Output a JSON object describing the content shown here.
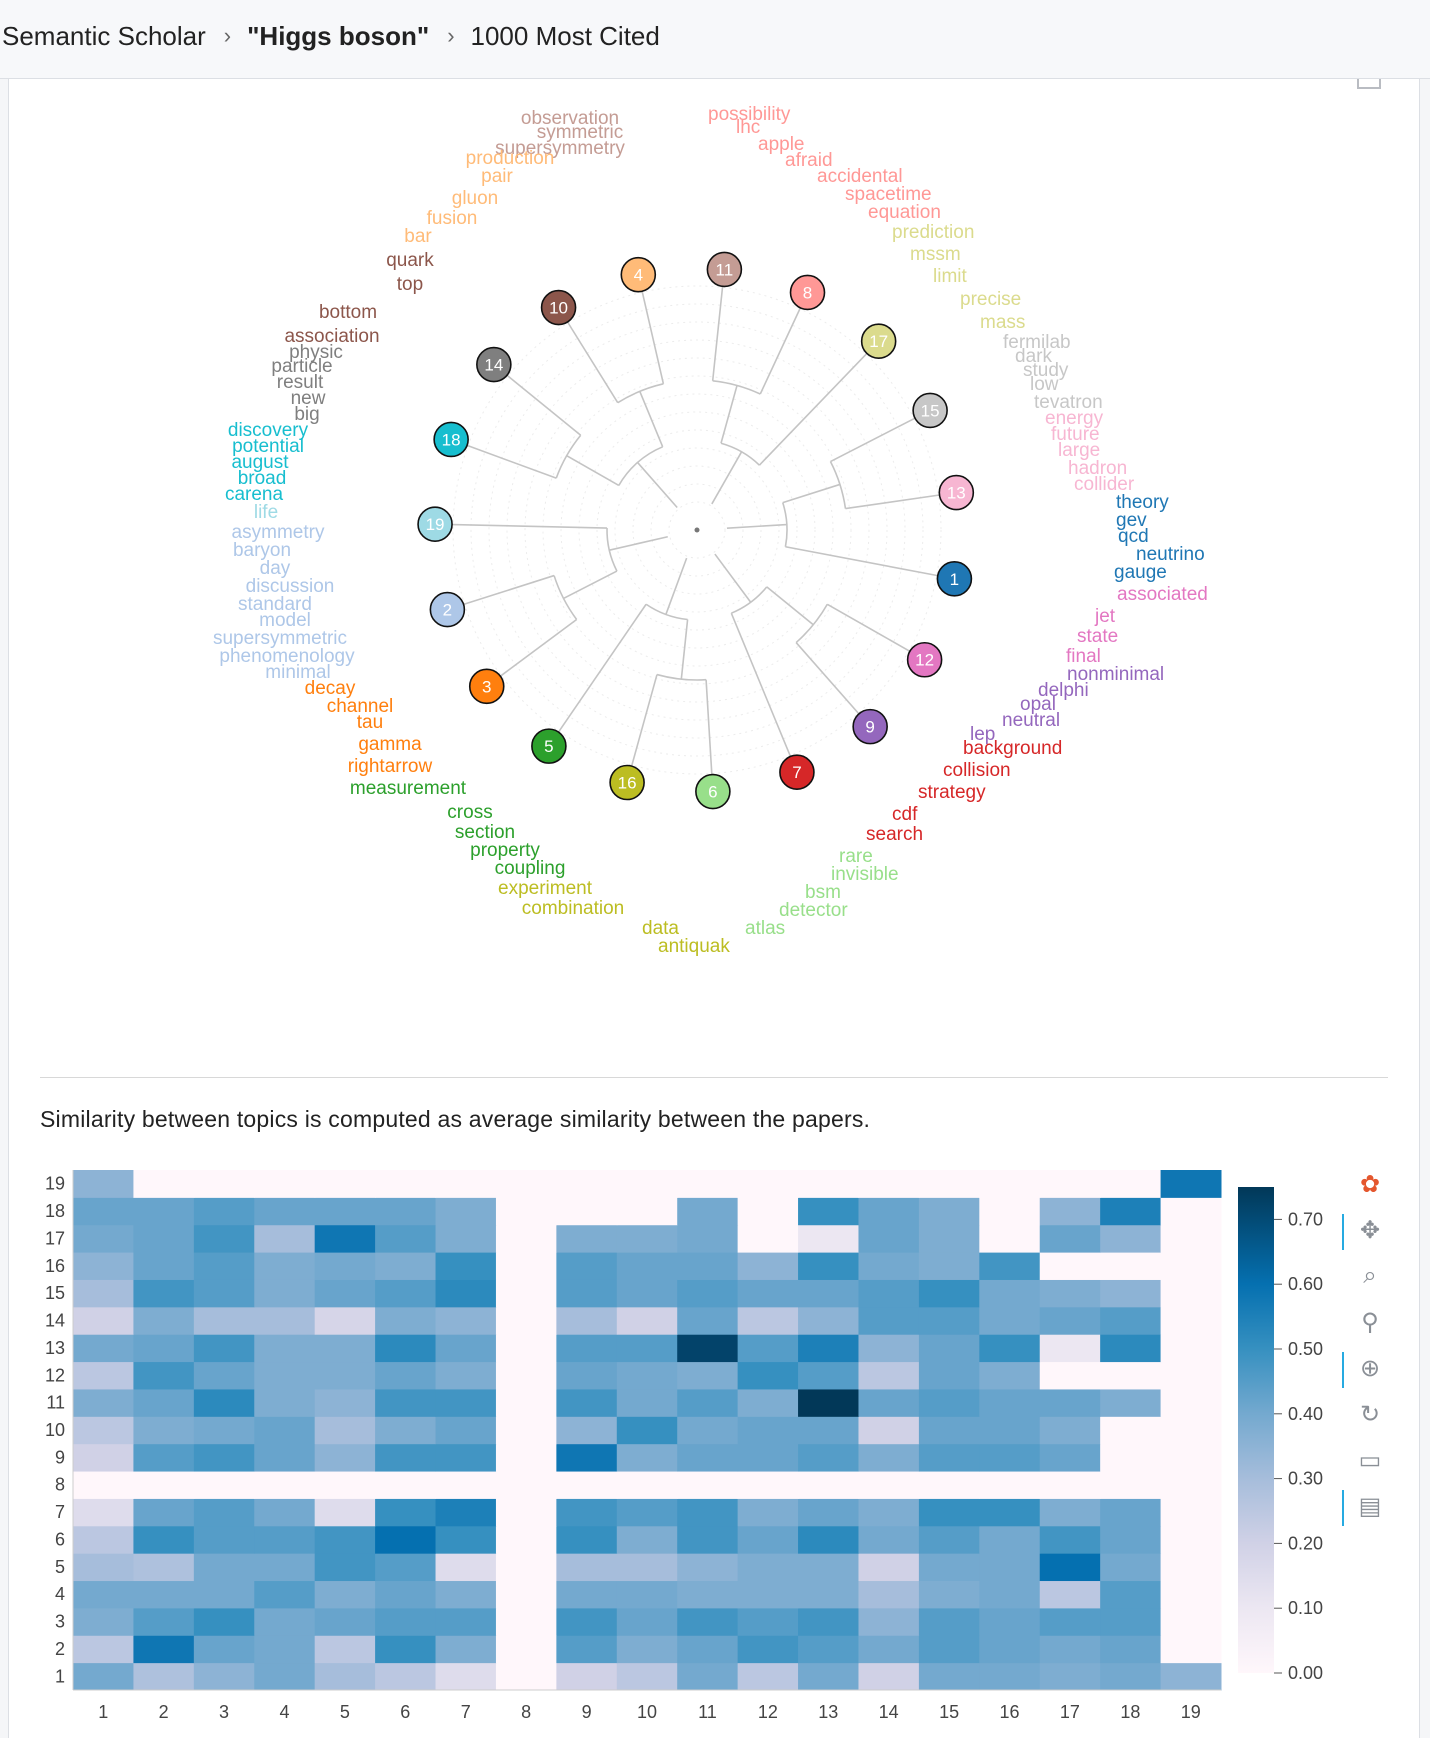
{
  "breadcrumb": {
    "items": [
      "Semantic Scholar",
      "\"Higgs boson\"",
      "1000 Most Cited"
    ],
    "separator": "›"
  },
  "note": "Similarity between topics is computed as average similarity between the papers.",
  "topic_colors": {
    "1": "#1f77b4",
    "2": "#aec7e8",
    "3": "#ff7f0e",
    "4": "#ffbb78",
    "5": "#2ca02c",
    "6": "#98df8a",
    "7": "#d62728",
    "8": "#ff9896",
    "9": "#9467bd",
    "10": "#8c564b",
    "11": "#c49c94",
    "12": "#e377c2",
    "13": "#f7b6d2",
    "14": "#7f7f7f",
    "15": "#c7c7c7",
    "16": "#bcbd22",
    "17": "#dbdb8d",
    "18": "#17becf",
    "19": "#9edae5"
  },
  "topic_nodes": [
    "11",
    "8",
    "17",
    "15",
    "13",
    "1",
    "12",
    "9",
    "7",
    "6",
    "16",
    "5",
    "3",
    "2",
    "19",
    "18",
    "14",
    "10",
    "4"
  ],
  "topic_words": [
    {
      "t": "11",
      "words": [
        "observation",
        "symmetric",
        "supersymmetry"
      ]
    },
    {
      "t": "8",
      "words": [
        "possibility",
        "lhc",
        "apple",
        "afraid",
        "accidental",
        "spacetime",
        "equation"
      ]
    },
    {
      "t": "17",
      "words": [
        "prediction",
        "mssm",
        "limit",
        "precise",
        "mass"
      ]
    },
    {
      "t": "15",
      "words": [
        "fermilab",
        "dark",
        "study",
        "low",
        "tevatron"
      ]
    },
    {
      "t": "13",
      "words": [
        "energy",
        "future",
        "large",
        "hadron",
        "collider"
      ]
    },
    {
      "t": "1",
      "words": [
        "theory",
        "gev",
        "qcd",
        "neutrino",
        "gauge"
      ]
    },
    {
      "t": "12",
      "words": [
        "associated",
        "jet",
        "state",
        "final"
      ]
    },
    {
      "t": "9",
      "words": [
        "nonminimal",
        "delphi",
        "opal",
        "neutral",
        "lep"
      ]
    },
    {
      "t": "7",
      "words": [
        "background",
        "collision",
        "strategy",
        "cdf",
        "search"
      ]
    },
    {
      "t": "6",
      "words": [
        "rare",
        "invisible",
        "bsm",
        "detector",
        "atlas"
      ]
    },
    {
      "t": "16",
      "words": [
        "data",
        "antiquak"
      ]
    },
    {
      "t": "16b",
      "words": [
        "combination",
        "experiment"
      ]
    },
    {
      "t": "5",
      "words": [
        "coupling",
        "property",
        "section",
        "cross",
        "measurement"
      ]
    },
    {
      "t": "3",
      "words": [
        "rightarrow",
        "gamma",
        "tau",
        "channel",
        "decay"
      ]
    },
    {
      "t": "2",
      "words": [
        "minimal",
        "phenomenology",
        "supersymmetric",
        "model",
        "standard",
        "discussion",
        "day",
        "baryon",
        "asymmetry"
      ]
    },
    {
      "t": "19",
      "words": [
        "life"
      ]
    },
    {
      "t": "18",
      "words": [
        "carena",
        "broad",
        "august",
        "potential",
        "discovery"
      ]
    },
    {
      "t": "14",
      "words": [
        "big",
        "new",
        "result",
        "particle",
        "physic"
      ]
    },
    {
      "t": "10",
      "words": [
        "association",
        "bottom",
        "top",
        "quark"
      ]
    },
    {
      "t": "4",
      "words": [
        "bar",
        "fusion",
        "gluon",
        "pair",
        "production"
      ]
    }
  ],
  "chart_data": {
    "type": "heatmap",
    "x": [
      "1",
      "2",
      "3",
      "4",
      "5",
      "6",
      "7",
      "8",
      "9",
      "10",
      "11",
      "12",
      "13",
      "14",
      "15",
      "16",
      "17",
      "18",
      "19"
    ],
    "y": [
      "1",
      "2",
      "3",
      "4",
      "5",
      "6",
      "7",
      "8",
      "9",
      "10",
      "11",
      "12",
      "13",
      "14",
      "15",
      "16",
      "17",
      "18",
      "19"
    ],
    "colorbar_ticks": [
      "0.00",
      "0.10",
      "0.20",
      "0.30",
      "0.40",
      "0.50",
      "0.60",
      "0.70"
    ],
    "vmin": 0,
    "vmax": 0.75,
    "values": [
      [
        0.4,
        0.28,
        0.35,
        0.4,
        0.3,
        0.25,
        0.15,
        0.0,
        0.2,
        0.25,
        0.4,
        0.25,
        0.4,
        0.2,
        0.4,
        0.4,
        0.38,
        0.4,
        0.35
      ],
      [
        0.25,
        0.58,
        0.42,
        0.4,
        0.25,
        0.5,
        0.38,
        0.0,
        0.45,
        0.38,
        0.42,
        0.48,
        0.45,
        0.4,
        0.45,
        0.42,
        0.4,
        0.42,
        0.0
      ],
      [
        0.38,
        0.45,
        0.5,
        0.4,
        0.42,
        0.45,
        0.45,
        0.0,
        0.48,
        0.42,
        0.48,
        0.45,
        0.48,
        0.35,
        0.45,
        0.42,
        0.45,
        0.45,
        0.0
      ],
      [
        0.4,
        0.4,
        0.4,
        0.45,
        0.38,
        0.42,
        0.38,
        0.0,
        0.4,
        0.4,
        0.38,
        0.38,
        0.38,
        0.3,
        0.38,
        0.4,
        0.25,
        0.45,
        0.0
      ],
      [
        0.3,
        0.28,
        0.4,
        0.4,
        0.48,
        0.45,
        0.15,
        0.0,
        0.3,
        0.3,
        0.35,
        0.38,
        0.38,
        0.2,
        0.4,
        0.4,
        0.6,
        0.4,
        0.0
      ],
      [
        0.25,
        0.5,
        0.45,
        0.45,
        0.48,
        0.6,
        0.5,
        0.0,
        0.5,
        0.38,
        0.48,
        0.42,
        0.52,
        0.4,
        0.45,
        0.4,
        0.48,
        0.42,
        0.0
      ],
      [
        0.15,
        0.42,
        0.45,
        0.4,
        0.15,
        0.5,
        0.55,
        0.0,
        0.48,
        0.45,
        0.48,
        0.38,
        0.42,
        0.38,
        0.5,
        0.5,
        0.38,
        0.42,
        0.0
      ],
      [
        0.0,
        0.0,
        0.0,
        0.0,
        0.0,
        0.0,
        0.0,
        0.0,
        0.0,
        0.0,
        0.0,
        0.0,
        0.0,
        0.0,
        0.0,
        0.0,
        0.0,
        0.0,
        0.0
      ],
      [
        0.2,
        0.45,
        0.48,
        0.42,
        0.35,
        0.48,
        0.48,
        0.0,
        0.58,
        0.38,
        0.42,
        0.42,
        0.45,
        0.38,
        0.45,
        0.45,
        0.42,
        0.0,
        0.0
      ],
      [
        0.25,
        0.38,
        0.4,
        0.42,
        0.3,
        0.38,
        0.42,
        0.0,
        0.35,
        0.5,
        0.4,
        0.42,
        0.42,
        0.2,
        0.42,
        0.42,
        0.38,
        0.0,
        0.0
      ],
      [
        0.38,
        0.42,
        0.52,
        0.38,
        0.35,
        0.48,
        0.48,
        0.0,
        0.48,
        0.4,
        0.45,
        0.38,
        0.75,
        0.42,
        0.45,
        0.42,
        0.42,
        0.38,
        0.0
      ],
      [
        0.25,
        0.48,
        0.42,
        0.38,
        0.38,
        0.42,
        0.38,
        0.0,
        0.42,
        0.4,
        0.38,
        0.5,
        0.45,
        0.25,
        0.42,
        0.38,
        0.0,
        0.0,
        0.0
      ],
      [
        0.4,
        0.42,
        0.48,
        0.38,
        0.38,
        0.52,
        0.42,
        0.0,
        0.45,
        0.45,
        0.72,
        0.45,
        0.55,
        0.35,
        0.42,
        0.5,
        0.1,
        0.52,
        0.0
      ],
      [
        0.2,
        0.38,
        0.3,
        0.3,
        0.18,
        0.38,
        0.35,
        0.0,
        0.3,
        0.2,
        0.42,
        0.25,
        0.35,
        0.45,
        0.45,
        0.4,
        0.42,
        0.45,
        0.0
      ],
      [
        0.3,
        0.48,
        0.45,
        0.38,
        0.42,
        0.45,
        0.52,
        0.0,
        0.45,
        0.42,
        0.45,
        0.42,
        0.42,
        0.45,
        0.5,
        0.4,
        0.38,
        0.35,
        0.0
      ],
      [
        0.35,
        0.42,
        0.45,
        0.38,
        0.4,
        0.38,
        0.5,
        0.0,
        0.45,
        0.42,
        0.42,
        0.35,
        0.5,
        0.4,
        0.38,
        0.48,
        0.0,
        0.0,
        0.0
      ],
      [
        0.4,
        0.42,
        0.48,
        0.3,
        0.58,
        0.45,
        0.38,
        0.0,
        0.38,
        0.38,
        0.4,
        0.0,
        0.1,
        0.42,
        0.38,
        0.0,
        0.42,
        0.35,
        0.0
      ],
      [
        0.42,
        0.42,
        0.45,
        0.42,
        0.42,
        0.42,
        0.38,
        0.0,
        0.0,
        0.0,
        0.4,
        0.0,
        0.5,
        0.42,
        0.38,
        0.0,
        0.35,
        0.55,
        0.0
      ],
      [
        0.35,
        0.0,
        0.0,
        0.0,
        0.0,
        0.0,
        0.0,
        0.0,
        0.0,
        0.0,
        0.0,
        0.0,
        0.0,
        0.0,
        0.0,
        0.0,
        0.0,
        0.0,
        0.58
      ]
    ]
  },
  "toolbar": {
    "tools": [
      {
        "name": "bokeh-logo-icon",
        "glyph": "✿",
        "active": false
      },
      {
        "name": "pan-icon",
        "glyph": "✥",
        "active": true
      },
      {
        "name": "box-zoom-icon",
        "glyph": "⌕",
        "active": false
      },
      {
        "name": "wheel-zoom-icon",
        "glyph": "⚲",
        "active": false
      },
      {
        "name": "zoom-in-icon",
        "glyph": "⊕",
        "active": true
      },
      {
        "name": "reset-icon",
        "glyph": "↻",
        "active": false
      },
      {
        "name": "save-icon",
        "glyph": "▭",
        "active": false
      },
      {
        "name": "hover-icon",
        "glyph": "▤",
        "active": true
      }
    ]
  }
}
